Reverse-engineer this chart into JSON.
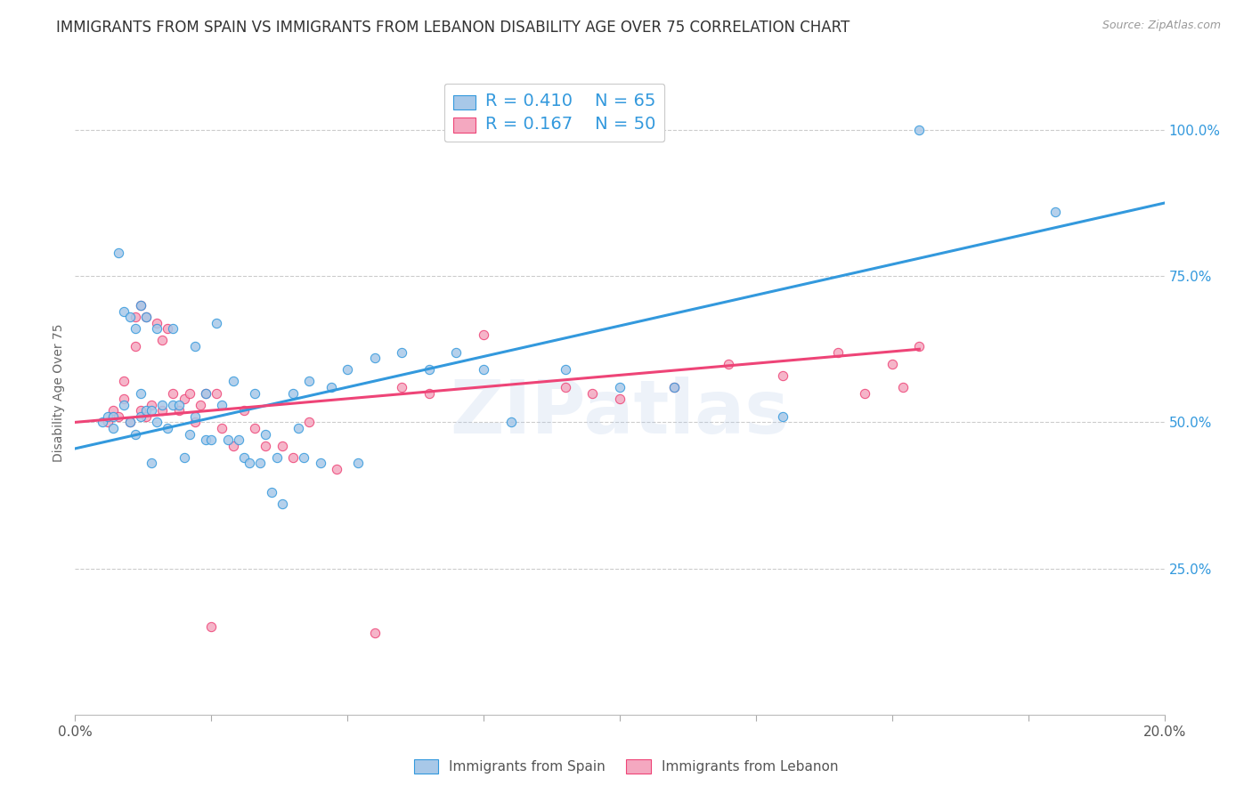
{
  "title": "IMMIGRANTS FROM SPAIN VS IMMIGRANTS FROM LEBANON DISABILITY AGE OVER 75 CORRELATION CHART",
  "source": "Source: ZipAtlas.com",
  "ylabel": "Disability Age Over 75",
  "right_yticks": [
    "100.0%",
    "75.0%",
    "50.0%",
    "25.0%"
  ],
  "right_ytick_vals": [
    1.0,
    0.75,
    0.5,
    0.25
  ],
  "legend_r_spain": "R = 0.410",
  "legend_n_spain": "N = 65",
  "legend_r_leb": "R = 0.167",
  "legend_n_leb": "N = 50",
  "spain_color": "#a8c8e8",
  "lebanon_color": "#f4a8c0",
  "spain_line_color": "#3399dd",
  "lebanon_line_color": "#ee4477",
  "xlim": [
    0.0,
    0.2
  ],
  "ylim": [
    0.0,
    1.1
  ],
  "marker_size": 55,
  "marker_alpha": 0.85,
  "background_color": "#ffffff",
  "watermark": "ZIPatlas",
  "title_fontsize": 12,
  "axis_label_fontsize": 10,
  "spain_line_x0": 0.0,
  "spain_line_y0": 0.455,
  "spain_line_x1": 0.2,
  "spain_line_y1": 0.875,
  "leb_line_x0": 0.0,
  "leb_line_y0": 0.5,
  "leb_line_x1": 0.155,
  "leb_line_y1": 0.625,
  "spain_scatter_x": [
    0.005,
    0.006,
    0.007,
    0.007,
    0.008,
    0.009,
    0.009,
    0.01,
    0.01,
    0.011,
    0.011,
    0.012,
    0.012,
    0.012,
    0.013,
    0.013,
    0.014,
    0.014,
    0.015,
    0.015,
    0.016,
    0.017,
    0.018,
    0.018,
    0.019,
    0.02,
    0.021,
    0.022,
    0.022,
    0.024,
    0.024,
    0.025,
    0.026,
    0.027,
    0.028,
    0.029,
    0.03,
    0.031,
    0.032,
    0.033,
    0.034,
    0.035,
    0.036,
    0.037,
    0.038,
    0.04,
    0.041,
    0.042,
    0.043,
    0.045,
    0.047,
    0.05,
    0.052,
    0.055,
    0.06,
    0.065,
    0.07,
    0.075,
    0.08,
    0.09,
    0.1,
    0.11,
    0.13,
    0.155,
    0.18
  ],
  "spain_scatter_y": [
    0.5,
    0.51,
    0.49,
    0.51,
    0.79,
    0.53,
    0.69,
    0.68,
    0.5,
    0.66,
    0.48,
    0.7,
    0.55,
    0.51,
    0.68,
    0.52,
    0.52,
    0.43,
    0.66,
    0.5,
    0.53,
    0.49,
    0.66,
    0.53,
    0.53,
    0.44,
    0.48,
    0.63,
    0.51,
    0.47,
    0.55,
    0.47,
    0.67,
    0.53,
    0.47,
    0.57,
    0.47,
    0.44,
    0.43,
    0.55,
    0.43,
    0.48,
    0.38,
    0.44,
    0.36,
    0.55,
    0.49,
    0.44,
    0.57,
    0.43,
    0.56,
    0.59,
    0.43,
    0.61,
    0.62,
    0.59,
    0.62,
    0.59,
    0.5,
    0.59,
    0.56,
    0.56,
    0.51,
    1.0,
    0.86
  ],
  "leb_scatter_x": [
    0.006,
    0.007,
    0.008,
    0.009,
    0.009,
    0.01,
    0.011,
    0.011,
    0.012,
    0.012,
    0.013,
    0.013,
    0.014,
    0.015,
    0.016,
    0.016,
    0.017,
    0.018,
    0.019,
    0.02,
    0.021,
    0.022,
    0.023,
    0.024,
    0.025,
    0.026,
    0.027,
    0.029,
    0.031,
    0.033,
    0.035,
    0.038,
    0.04,
    0.043,
    0.048,
    0.055,
    0.06,
    0.065,
    0.075,
    0.09,
    0.095,
    0.1,
    0.11,
    0.12,
    0.13,
    0.14,
    0.145,
    0.15,
    0.152,
    0.155
  ],
  "leb_scatter_y": [
    0.5,
    0.52,
    0.51,
    0.54,
    0.57,
    0.5,
    0.68,
    0.63,
    0.7,
    0.52,
    0.68,
    0.51,
    0.53,
    0.67,
    0.64,
    0.52,
    0.66,
    0.55,
    0.52,
    0.54,
    0.55,
    0.5,
    0.53,
    0.55,
    0.15,
    0.55,
    0.49,
    0.46,
    0.52,
    0.49,
    0.46,
    0.46,
    0.44,
    0.5,
    0.42,
    0.14,
    0.56,
    0.55,
    0.65,
    0.56,
    0.55,
    0.54,
    0.56,
    0.6,
    0.58,
    0.62,
    0.55,
    0.6,
    0.56,
    0.63
  ]
}
